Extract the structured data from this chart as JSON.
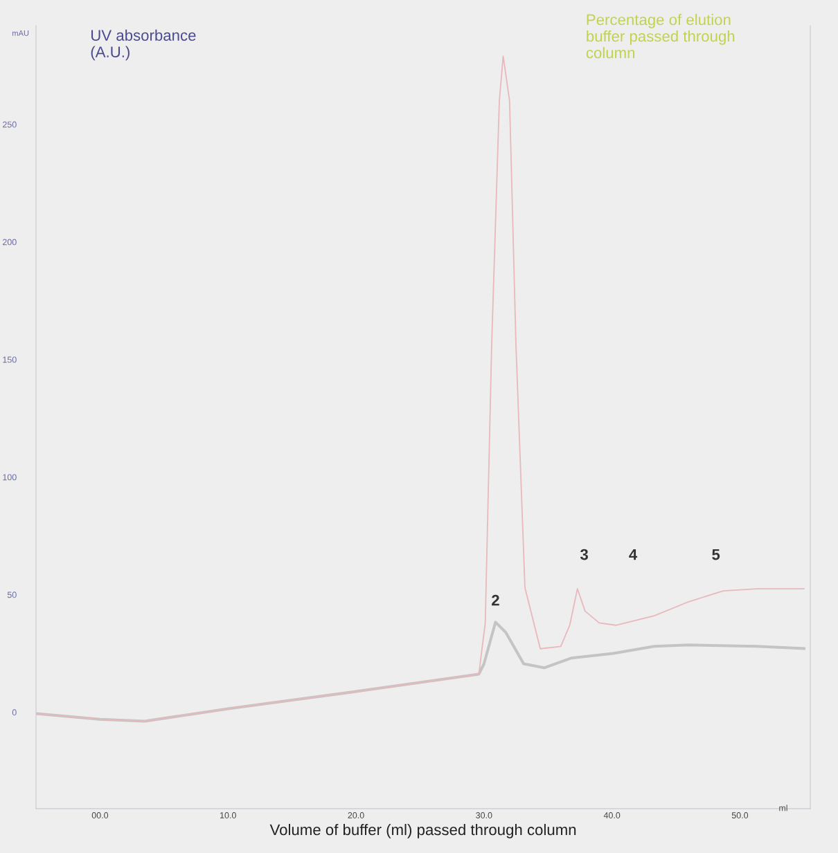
{
  "chart_data": {
    "type": "line",
    "xlabel": "Volume of buffer (ml) passed through column",
    "ylabel": "mAU",
    "xlim": [
      -5,
      55.5
    ],
    "ylim": [
      -41,
      292
    ],
    "xticks": [
      {
        "value": 0,
        "label": "00.0"
      },
      {
        "value": 10,
        "label": "10.0"
      },
      {
        "value": 20,
        "label": "20.0"
      },
      {
        "value": 30,
        "label": "30.0"
      },
      {
        "value": 40,
        "label": "40.0"
      },
      {
        "value": 50,
        "label": "50.0"
      }
    ],
    "yticks": [
      0,
      50,
      100,
      150,
      200,
      250
    ],
    "grid": false,
    "legend": false,
    "marker": "none",
    "line_style": "solid",
    "series": [
      {
        "color": "#c4c4c4",
        "x": [
          -5,
          0,
          3.5,
          10,
          20,
          29.6,
          30,
          30.9,
          31.7,
          33.1,
          34.7,
          36.8,
          40.1,
          43.3,
          46,
          51.3,
          55
        ],
        "values": [
          -0.6,
          -3,
          -3.8,
          1.5,
          8.8,
          16.2,
          20.6,
          38.3,
          34,
          20.6,
          18.9,
          23,
          25,
          28,
          28.6,
          28,
          27.1
        ]
      },
      {
        "color": "#e8b8bc",
        "x": [
          -5,
          0,
          3.5,
          10,
          20,
          29.6,
          30.1,
          30.6,
          31.2,
          31.5,
          32,
          32.5,
          33.2,
          34.4,
          36,
          36.7,
          37.3,
          37.9,
          39,
          40.3,
          43.3,
          46,
          48.7,
          51.3,
          55
        ],
        "values": [
          -0.6,
          -3,
          -3.8,
          1.5,
          8.8,
          16.2,
          38,
          156,
          260,
          279,
          260,
          156,
          53,
          27,
          28,
          37,
          52.5,
          43,
          38,
          37,
          41,
          47,
          51.6,
          52.5,
          52.5
        ]
      }
    ],
    "annotations": [
      "UV absorbance\n(A.U.)",
      "Percentage of elution\nbuffer passed through\ncolumn",
      "ml",
      {
        "text": "2",
        "x": 30.9,
        "y": 38.3
      },
      "3",
      "4",
      "5"
    ]
  }
}
